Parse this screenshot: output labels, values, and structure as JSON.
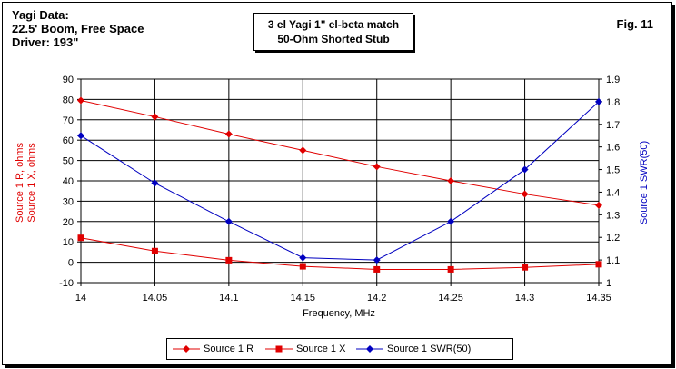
{
  "info": {
    "line1": "Yagi Data:",
    "line2": "22.5' Boom, Free Space",
    "line3": "Driver: 193\""
  },
  "fig_label": "Fig. 11",
  "colors": {
    "red": "#e00000",
    "blue": "#0000c0",
    "grid": "#000000"
  },
  "chart_data": {
    "type": "line",
    "title_lines": [
      "3 el Yagi 1\" el-beta match",
      "50-Ohm Shorted Stub"
    ],
    "xlabel": "Frequency, MHz",
    "ylabel_left_lines": [
      "Source 1 R, ohms",
      "Source 1 X, ohms"
    ],
    "ylabel_right": "Source 1 SWR(50)",
    "x": [
      14,
      14.05,
      14.1,
      14.15,
      14.2,
      14.25,
      14.3,
      14.35
    ],
    "x_tick_labels": [
      "14",
      "14.05",
      "14.1",
      "14.15",
      "14.2",
      "14.25",
      "14.3",
      "14.35"
    ],
    "ylim_left": [
      -10,
      90
    ],
    "yticks_left": [
      "-10",
      "0",
      "10",
      "20",
      "30",
      "40",
      "50",
      "60",
      "70",
      "80",
      "90"
    ],
    "ylim_right": [
      1,
      1.9
    ],
    "yticks_right": [
      "1",
      "1.1",
      "1.2",
      "1.3",
      "1.4",
      "1.5",
      "1.6",
      "1.7",
      "1.8",
      "1.9"
    ],
    "grid": true,
    "legend_position": "bottom",
    "series": [
      {
        "name": "Source 1 R",
        "axis": "left",
        "color": "#e00000",
        "marker": "diamond",
        "values": [
          79.5,
          71.5,
          63,
          55,
          47,
          40,
          33.5,
          28
        ]
      },
      {
        "name": "Source 1 X",
        "axis": "left",
        "color": "#e00000",
        "marker": "square",
        "values": [
          12,
          5.5,
          1,
          -2,
          -3.5,
          -3.5,
          -2.5,
          -1
        ]
      },
      {
        "name": "Source 1 SWR(50)",
        "axis": "right",
        "color": "#0000c0",
        "marker": "diamond",
        "values": [
          1.65,
          1.44,
          1.27,
          1.11,
          1.1,
          1.27,
          1.5,
          1.8
        ]
      }
    ]
  }
}
